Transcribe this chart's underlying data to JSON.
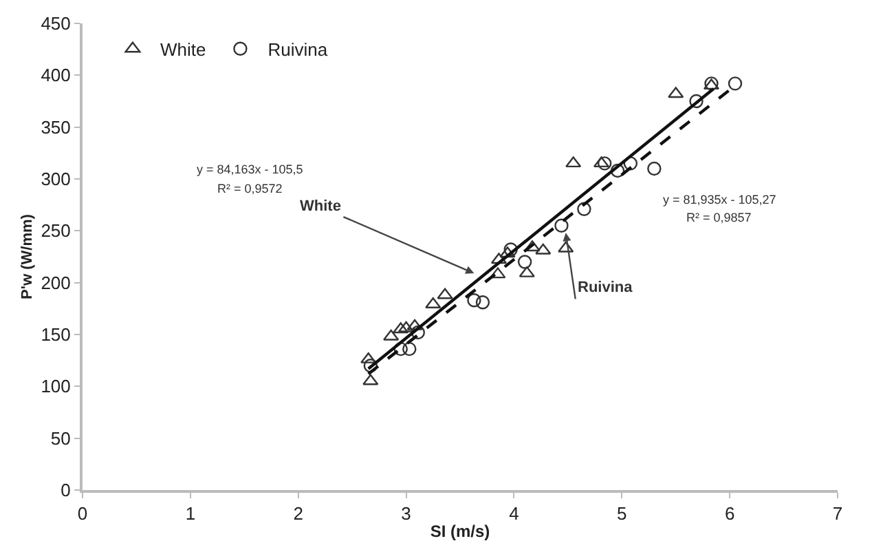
{
  "chart_data": {
    "type": "scatter",
    "xlabel": "SI (m/s)",
    "ylabel": "P'w (W/mm)",
    "xlim": [
      0,
      7
    ],
    "xticks": [
      0,
      1,
      2,
      3,
      4,
      5,
      6,
      7
    ],
    "ylim": [
      0,
      450
    ],
    "yticks": [
      0,
      50,
      100,
      150,
      200,
      250,
      300,
      350,
      400,
      450
    ],
    "legend": "top left",
    "series": [
      {
        "name": "White",
        "marker": "triangle",
        "color": "#333333",
        "x": [
          2.67,
          2.65,
          2.86,
          2.95,
          3.0,
          3.08,
          3.25,
          3.36,
          3.85,
          3.86,
          3.94,
          4.12,
          4.17,
          4.27,
          4.48,
          4.55,
          4.81,
          5.5,
          5.83
        ],
        "values": [
          105,
          126,
          148,
          155,
          156,
          158,
          179,
          188,
          208,
          222,
          228,
          209,
          234,
          231,
          233,
          315,
          315,
          382,
          390
        ]
      },
      {
        "name": "Ruivina",
        "marker": "circle",
        "color": "#333333",
        "x": [
          2.67,
          2.95,
          3.03,
          3.11,
          3.63,
          3.71,
          3.97,
          4.1,
          4.44,
          4.65,
          4.84,
          4.96,
          5.08,
          5.3,
          5.69,
          5.83,
          6.05
        ],
        "values": [
          120,
          136,
          136,
          152,
          183,
          181,
          232,
          220,
          255,
          271,
          315,
          308,
          315,
          310,
          375,
          392,
          392
        ]
      },
      {
        "type": "line",
        "line_style": "solid",
        "color": "#111111",
        "x": [
          2.65,
          5.85
        ],
        "values": [
          117,
          387
        ]
      },
      {
        "type": "line",
        "line_style": "dashed",
        "color": "#111111",
        "x": [
          2.65,
          6.05
        ],
        "values": [
          112,
          390
        ]
      }
    ],
    "annotations": [
      {
        "text": "White",
        "x": 3.63,
        "y": 209
      },
      {
        "text": "Ruivina",
        "x": 4.48,
        "y": 248
      },
      "y = 84,163x - 105,5",
      "R² = 0,9572",
      "y = 81,935x - 105,27",
      "R² = 0,9857"
    ]
  }
}
